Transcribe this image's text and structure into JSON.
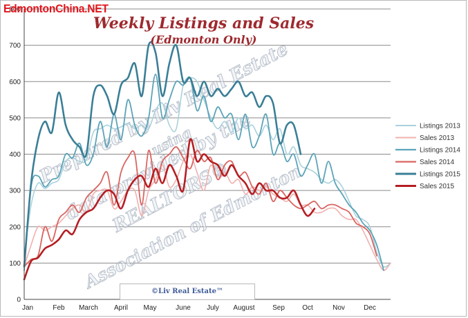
{
  "watermark_top": "EdmontonChina.NET",
  "watermark_lines": [
    "Prepared by Liv Real Estate",
    "using",
    "data provided by the",
    "REALTORS®",
    "Association of Edmonton"
  ],
  "credit": "©Liv Real Estate™",
  "chart_data": {
    "type": "line",
    "title": "Weekly Listings and Sales",
    "subtitle": "(Edmonton Only)",
    "xlabel": "",
    "ylabel": "",
    "ylim": [
      0,
      800
    ],
    "yticks": [
      0,
      100,
      200,
      300,
      400,
      500,
      600,
      700,
      800
    ],
    "xlim": [
      0,
      53
    ],
    "month_labels": [
      {
        "label": "Jan",
        "week": 0.5
      },
      {
        "label": "Feb",
        "week": 5
      },
      {
        "label": "March",
        "week": 9.3
      },
      {
        "label": "April",
        "week": 14
      },
      {
        "label": "May",
        "week": 18.2
      },
      {
        "label": "June",
        "week": 23
      },
      {
        "label": "July",
        "week": 27.3
      },
      {
        "label": "August",
        "week": 31.8
      },
      {
        "label": "Sep",
        "week": 36.8
      },
      {
        "label": "Oct",
        "week": 41
      },
      {
        "label": "Nov",
        "week": 45.5
      },
      {
        "label": "Dec",
        "week": 50
      }
    ],
    "grid": "horizontal",
    "legend": "right",
    "series": [
      {
        "name": "Listings 2013",
        "color": "#a9d1dc",
        "width": 1.6,
        "values": [
          120,
          260,
          320,
          305,
          320,
          330,
          380,
          390,
          380,
          385,
          460,
          470,
          480,
          470,
          475,
          485,
          470,
          480,
          470,
          520,
          540,
          480,
          470,
          590,
          610,
          600,
          550,
          500,
          470,
          490,
          460,
          500,
          470,
          480,
          450,
          480,
          440,
          470,
          400,
          420,
          370,
          360,
          350,
          330,
          320,
          330,
          310,
          270,
          230,
          220,
          200,
          130,
          90,
          100
        ]
      },
      {
        "name": "Sales 2013",
        "color": "#f0b0ae",
        "width": 1.6,
        "values": [
          90,
          150,
          200,
          190,
          200,
          210,
          230,
          250,
          260,
          240,
          290,
          300,
          300,
          250,
          270,
          300,
          300,
          230,
          300,
          330,
          370,
          310,
          330,
          380,
          400,
          350,
          300,
          370,
          330,
          350,
          320,
          330,
          290,
          310,
          300,
          310,
          290,
          280,
          270,
          290,
          260,
          260,
          240,
          240,
          250,
          250,
          230,
          220,
          220,
          190,
          150,
          110,
          80,
          100
        ]
      },
      {
        "name": "Listings 2014",
        "color": "#5ba3b8",
        "width": 1.8,
        "values": [
          80,
          310,
          340,
          310,
          330,
          340,
          400,
          390,
          430,
          370,
          400,
          490,
          420,
          510,
          440,
          550,
          480,
          450,
          500,
          620,
          500,
          550,
          600,
          590,
          610,
          520,
          560,
          490,
          530,
          500,
          510,
          440,
          510,
          420,
          450,
          510,
          400,
          430,
          380,
          400,
          340,
          370,
          400,
          320,
          380,
          320,
          290,
          260,
          240,
          210,
          190,
          150,
          80
        ]
      },
      {
        "name": "Sales 2014",
        "color": "#d96460",
        "width": 1.8,
        "values": [
          90,
          110,
          120,
          200,
          160,
          220,
          240,
          260,
          240,
          280,
          300,
          320,
          350,
          260,
          350,
          390,
          400,
          260,
          410,
          320,
          380,
          400,
          420,
          390,
          360,
          410,
          380,
          390,
          330,
          370,
          380,
          340,
          350,
          310,
          290,
          320,
          270,
          300,
          280,
          260,
          250,
          260,
          270,
          250,
          260,
          260,
          250,
          240,
          210,
          200,
          180,
          120
        ]
      },
      {
        "name": "Listings 2015",
        "color": "#3a7e96",
        "width": 2.6,
        "values": [
          90,
          320,
          440,
          490,
          460,
          570,
          480,
          440,
          420,
          400,
          560,
          590,
          560,
          510,
          590,
          610,
          650,
          560,
          700,
          680,
          560,
          650,
          700,
          600,
          610,
          560,
          600,
          560,
          580,
          560,
          580,
          600,
          560,
          570,
          530,
          560,
          540,
          430,
          480,
          480,
          400
        ]
      },
      {
        "name": "Sales 2015",
        "color": "#b51e23",
        "width": 2.6,
        "values": [
          55,
          105,
          115,
          140,
          150,
          165,
          190,
          180,
          220,
          240,
          250,
          280,
          300,
          290,
          250,
          300,
          330,
          340,
          310,
          360,
          320,
          370,
          340,
          300,
          440,
          380,
          400,
          380,
          370,
          340,
          370,
          340,
          320,
          290,
          320,
          300,
          300,
          280,
          280,
          300,
          260,
          230,
          250
        ]
      }
    ]
  }
}
